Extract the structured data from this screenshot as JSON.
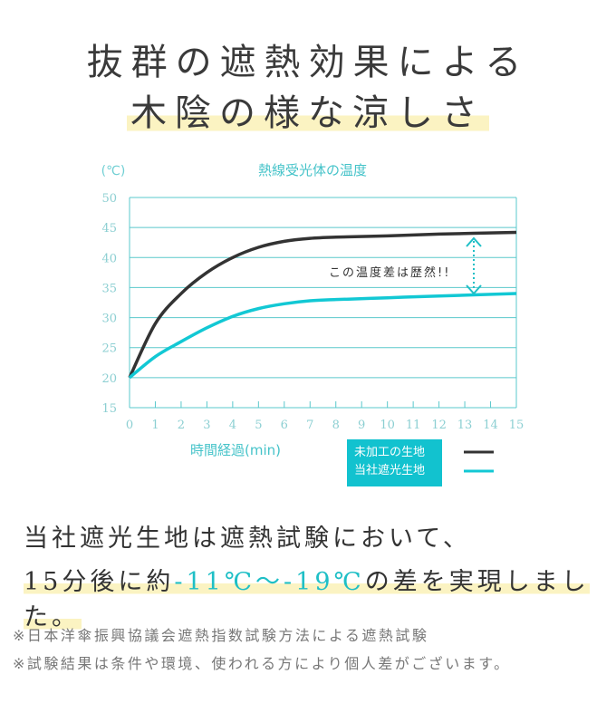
{
  "headline": {
    "line1": "抜群の遮熱効果による",
    "line2": "木陰の様な涼しさ"
  },
  "chart_data": {
    "type": "line",
    "title": "熱線受光体の温度",
    "ylabel": "(℃)",
    "xlabel": "時間経過(min)",
    "xlim": [
      0,
      15
    ],
    "ylim": [
      15,
      50
    ],
    "xticks": [
      0,
      1,
      2,
      3,
      4,
      5,
      6,
      7,
      8,
      9,
      10,
      11,
      12,
      13,
      14,
      15
    ],
    "yticks": [
      15,
      20,
      25,
      30,
      35,
      40,
      45,
      50
    ],
    "grid": "horizontal",
    "legend_position": "bottom-right",
    "annotation": "この温度差は歴然!!",
    "x": [
      0,
      1,
      2,
      3,
      4,
      5,
      6,
      7,
      8,
      10,
      12,
      15
    ],
    "series": [
      {
        "name": "未加工の生地",
        "color": "#333333",
        "values": [
          20,
          29,
          34,
          37.5,
          40,
          41.7,
          42.7,
          43.2,
          43.4,
          43.6,
          43.9,
          44.2
        ]
      },
      {
        "name": "当社遮光生地",
        "color": "#12c8d4",
        "values": [
          20,
          23.5,
          26,
          28.3,
          30.2,
          31.5,
          32.3,
          32.8,
          33,
          33.3,
          33.6,
          34
        ]
      }
    ],
    "colors": {
      "axis": "#5ac8cc",
      "grid": "#5ac8cc",
      "tick_text": "#8ccfd2",
      "title": "#45c3c9"
    }
  },
  "summary": {
    "line1": "当社遮光生地は遮熱試験において、",
    "line2_prefix": "15分後に約",
    "line2_highlight": "-11℃～-19℃",
    "line2_suffix": "の差を実現しました。"
  },
  "notes": [
    "※日本洋傘振興協議会遮熱指数試験方法による遮熱試験",
    "※試験結果は条件や環境、使われる方により個人差がございます。"
  ]
}
